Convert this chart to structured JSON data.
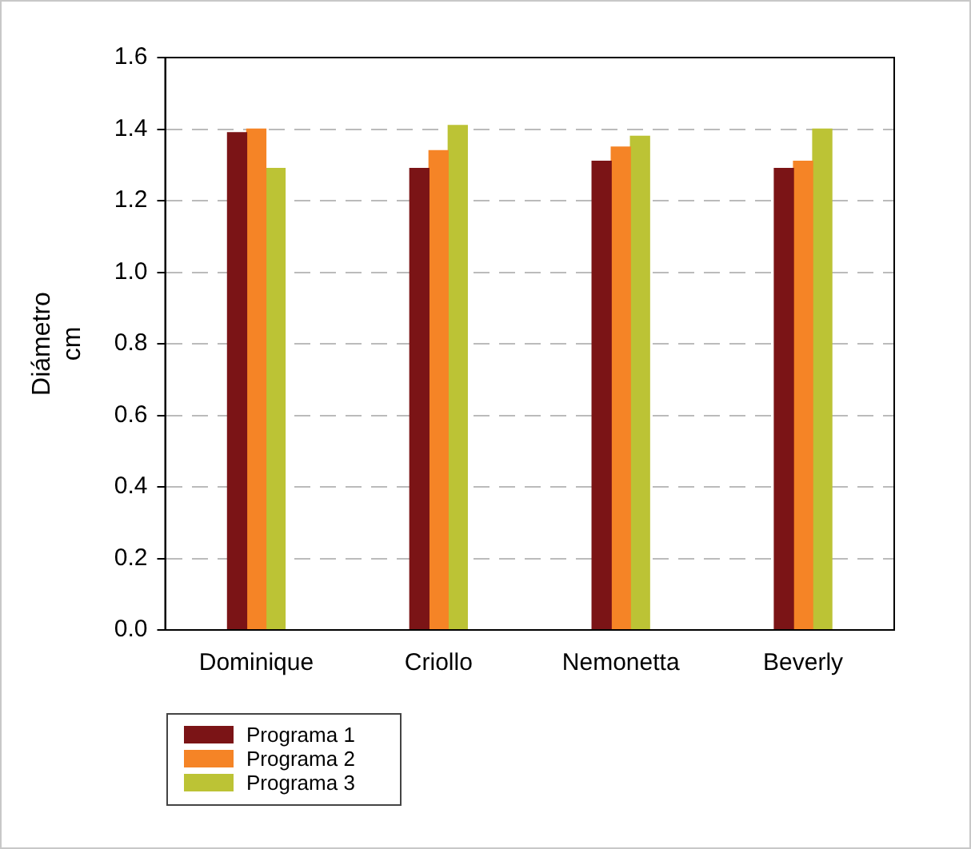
{
  "chart_data": {
    "type": "bar",
    "ylabel": "Diámetro cm",
    "categories": [
      "Dominique",
      "Criollo",
      "Nemonetta",
      "Beverly"
    ],
    "series": [
      {
        "name": "Programa 1",
        "color": "#7b1416",
        "values": [
          1.39,
          1.29,
          1.31,
          1.29
        ]
      },
      {
        "name": "Programa 2",
        "color": "#f58426",
        "values": [
          1.4,
          1.34,
          1.35,
          1.31
        ]
      },
      {
        "name": "Programa 3",
        "color": "#bcc335",
        "values": [
          1.29,
          1.41,
          1.38,
          1.4
        ]
      }
    ],
    "ylim": [
      0,
      1.6
    ],
    "yticks": [
      {
        "value": 0,
        "label": "0.0"
      },
      {
        "value": 0.2,
        "label": "0.2"
      },
      {
        "value": 0.4,
        "label": "0.4"
      },
      {
        "value": 0.6,
        "label": "0.6"
      },
      {
        "value": 0.8,
        "label": "0.8"
      },
      {
        "value": 1.0,
        "label": "1.0"
      },
      {
        "value": 1.2,
        "label": "1.2"
      },
      {
        "value": 1.4,
        "label": "1.4"
      },
      {
        "value": 1.6,
        "label": "1.6"
      }
    ],
    "grid": "y",
    "legend": "bottom left"
  }
}
